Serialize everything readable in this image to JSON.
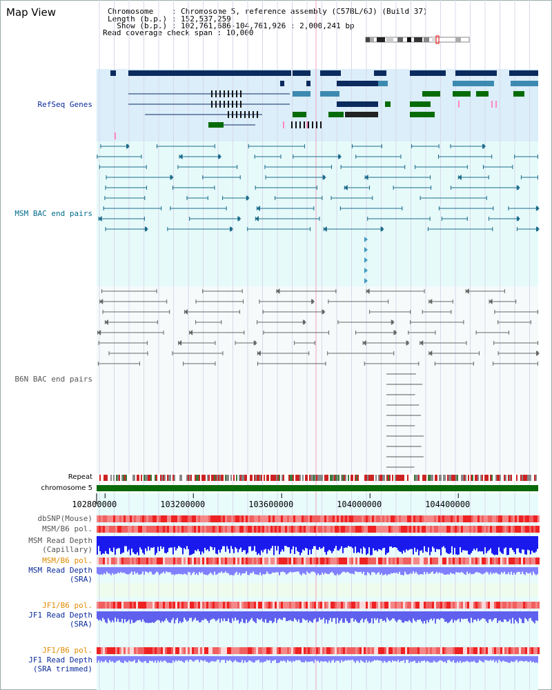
{
  "window": {
    "title": "Map View"
  },
  "header": {
    "chromosome_label": "Chromosome    : Chromosome 5, reference assembly (C57BL/6J) (Build 37)",
    "length_label": "Length (b.p.) : 152,537,259",
    "show_label": "  Show (b.p.) : 102,761,686-104,761,926 : 2,000,241 bp",
    "coverage_label": "Read coverage check span : 10,000"
  },
  "tracks": {
    "refseq": {
      "label": "RefSeq Genes",
      "color": "#0a2a9a"
    },
    "msm_bac": {
      "label": "MSM BAC end pairs",
      "color": "#006b8a"
    },
    "b6n_bac": {
      "label": "B6N BAC end pairs",
      "color": "#555555"
    },
    "repeat": {
      "label": "Repeat"
    },
    "chromosome": {
      "label": "chromosome 5"
    },
    "dbsnp": {
      "label": "dbSNP(Mouse)"
    },
    "msm_pol1": {
      "label": "MSM/B6 pol."
    },
    "msm_depth_cap": {
      "label1": "MSM Read Depth",
      "label2": "(Capillary)"
    },
    "msm_pol2": {
      "label": "MSM/B6 pol."
    },
    "msm_depth_sra": {
      "label1": "MSM Read Depth",
      "label2": "(SRA)"
    },
    "jf1_pol1": {
      "label": "JF1/B6 pol."
    },
    "jf1_depth_sra": {
      "label1": "JF1 Read Depth",
      "label2": "(SRA)"
    },
    "jf1_pol2": {
      "label": "JF1/B6 pol."
    },
    "jf1_depth_trim": {
      "label1": "JF1 Read Depth",
      "label2": "(SRA trimmed)"
    }
  },
  "axis": {
    "ticks": [
      "102800000",
      "103200000",
      "103600000",
      "104000000",
      "104400000"
    ],
    "tick_values": [
      102800000,
      103200000,
      103600000,
      104000000,
      104400000
    ],
    "start": 102761686,
    "end": 104761926
  },
  "colors": {
    "gene_dark": "#0b2a5e",
    "gene_mid": "#3d8ab0",
    "gene_green": "#056b05",
    "gene_pink": "#ff88bb",
    "refseq_bg": "#dbeefa",
    "msm_bg": "#e6fafa",
    "b6n_bg": "#f6fafa",
    "pol_red": "#ee3333",
    "depth_blue": "#1a1aee",
    "depth_light": "#8080ff"
  }
}
